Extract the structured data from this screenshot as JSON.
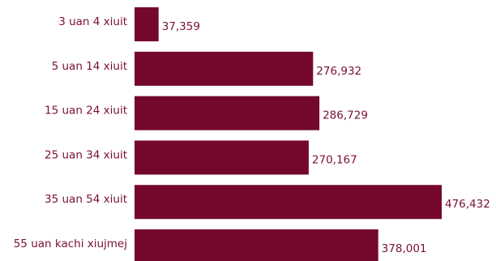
{
  "chart_data": {
    "type": "bar",
    "orientation": "horizontal",
    "title": "",
    "xlabel": "",
    "ylabel": "",
    "categories": [
      "3 uan 4 xiuit",
      "5 uan 14 xiuit",
      "15 uan 24 xiuit",
      "25 uan 34 xiuit",
      "35 uan 54 xiuit",
      "55 uan kachi xiujmej"
    ],
    "values": [
      37359,
      276932,
      286729,
      270167,
      476432,
      378001
    ],
    "value_labels": [
      "37,359",
      "276,932",
      "286,729",
      "270,167",
      "476,432",
      "378,001"
    ],
    "xlim": [
      0,
      476432
    ],
    "grid": false,
    "legend": "none",
    "bar_color": "#74082a",
    "label_color": "#7a1030"
  }
}
